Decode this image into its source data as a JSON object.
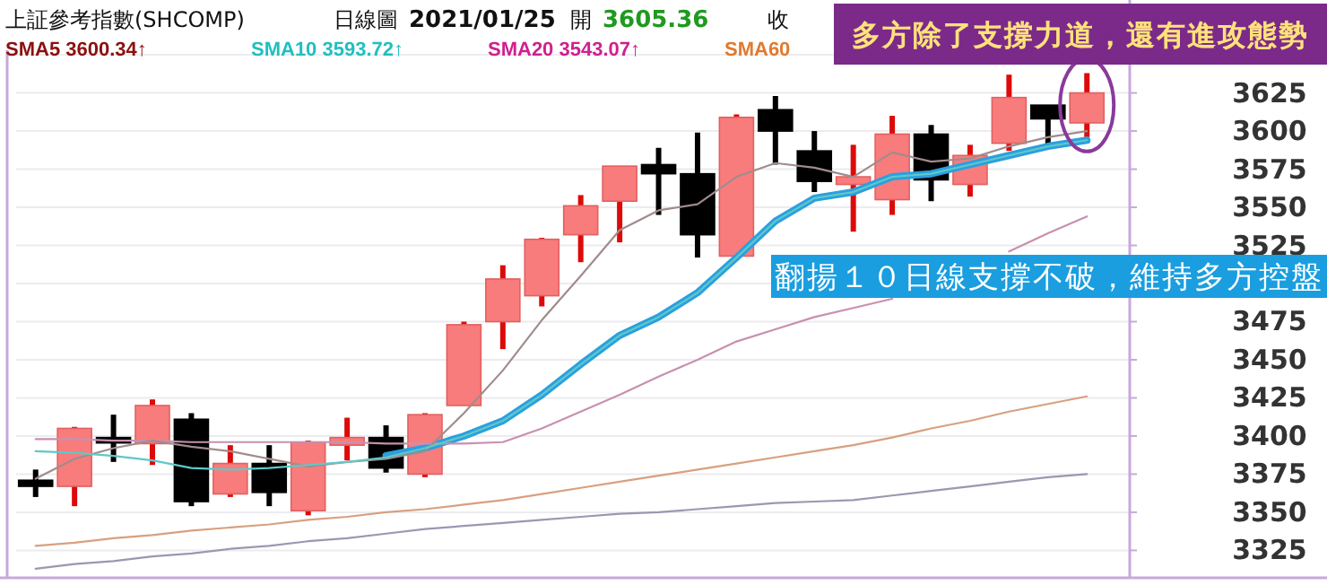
{
  "chart_data": {
    "type": "candlestick",
    "categories": [
      null,
      null,
      null,
      null,
      null,
      null,
      null,
      null,
      null,
      null,
      null,
      null,
      null,
      null,
      null,
      null,
      null,
      null,
      null,
      null,
      null,
      null,
      null,
      null,
      null,
      null,
      null,
      null
    ],
    "ohlc": [
      [
        3371,
        3378,
        3360,
        3367
      ],
      [
        3367,
        3406,
        3354,
        3405
      ],
      [
        3399,
        3414,
        3383,
        3397
      ],
      [
        3395,
        3424,
        3381,
        3420
      ],
      [
        3411,
        3415,
        3354,
        3357
      ],
      [
        3362,
        3394,
        3360,
        3382
      ],
      [
        3382,
        3394,
        3354,
        3363
      ],
      [
        3351,
        3397,
        3348,
        3396
      ],
      [
        3394,
        3412,
        3384,
        3399
      ],
      [
        3399,
        3407,
        3376,
        3379
      ],
      [
        3375,
        3415,
        3373,
        3414
      ],
      [
        3420,
        3475,
        3420,
        3473
      ],
      [
        3475,
        3512,
        3457,
        3503
      ],
      [
        3492,
        3530,
        3485,
        3529
      ],
      [
        3532,
        3558,
        3514,
        3551
      ],
      [
        3554,
        3577,
        3527,
        3577
      ],
      [
        3578,
        3589,
        3545,
        3572
      ],
      [
        3572,
        3599,
        3517,
        3532
      ],
      [
        3518,
        3611,
        3516,
        3609
      ],
      [
        3614,
        3623,
        3578,
        3600
      ],
      [
        3587,
        3600,
        3560,
        3567
      ],
      [
        3565,
        3591,
        3534,
        3570
      ],
      [
        3555,
        3610,
        3545,
        3598
      ],
      [
        3598,
        3604,
        3554,
        3568
      ],
      [
        3565,
        3591,
        3557,
        3584
      ],
      [
        3592,
        3637,
        3587,
        3622
      ],
      [
        3617,
        3617,
        3590,
        3608
      ],
      [
        3605.36,
        3638,
        3596,
        3625
      ]
    ],
    "series": [
      {
        "type": "line",
        "color": "#2aa0e0",
        "values": [
          null,
          null,
          null,
          null,
          null,
          null,
          null,
          null,
          null,
          3387,
          3392,
          3400,
          3410,
          3427,
          3447,
          3466,
          3478,
          3494,
          3517,
          3541,
          3556,
          3560,
          3570,
          3572,
          3578,
          3584,
          3590,
          3594
        ]
      },
      {
        "type": "line",
        "color": "#9a98b0",
        "values": [
          3313,
          3316,
          3318,
          3321,
          3323,
          3326,
          3328,
          3331,
          3333,
          3336,
          3339,
          3341,
          3343,
          3345,
          3347,
          3349,
          3350,
          3352,
          3354,
          3356,
          3357,
          3358,
          3361,
          3364,
          3367,
          3370,
          3373,
          3375
        ]
      },
      {
        "type": "line",
        "color": "#d8a080",
        "values": [
          3328,
          3330,
          3333,
          3335,
          3338,
          3340,
          3342,
          3345,
          3347,
          3350,
          3352,
          3355,
          3358,
          3362,
          3366,
          3370,
          3374,
          3378,
          3382,
          3386,
          3390,
          3394,
          3399,
          3405,
          3410,
          3416,
          3421,
          3426
        ]
      },
      {
        "type": "line",
        "color": "#c890b0",
        "values": [
          3398,
          3398,
          3397,
          3397,
          3396,
          3396,
          3396,
          3396,
          3396,
          3395,
          3395,
          3395,
          3396,
          3405,
          3416,
          3427,
          3439,
          3450,
          3462,
          3470,
          3478,
          3484,
          3490,
          null,
          null,
          3521,
          3533,
          3544
        ]
      },
      {
        "type": "line",
        "color": "#a08c8c",
        "values": [
          3372,
          3385,
          3392,
          3397,
          3393,
          3390,
          3385,
          3380,
          3383,
          3385,
          3390,
          3415,
          3443,
          3476,
          3505,
          3535,
          3548,
          3552,
          3570,
          3579,
          3576,
          3570,
          3586,
          3580,
          3582,
          3590,
          3596,
          3600
        ]
      },
      {
        "type": "line",
        "color": "#60c8c8",
        "values": [
          3390,
          3389,
          3387,
          3384,
          3379,
          3378,
          3379,
          3381,
          3383,
          3386,
          3392,
          3400,
          3410,
          3427,
          3447,
          3466,
          3478,
          3494,
          3517,
          3541,
          3556,
          3560,
          3570,
          3572,
          3578,
          3584,
          3590,
          3594
        ]
      }
    ],
    "ylim": [
      3307,
      3653
    ],
    "yticks": [
      3325,
      3350,
      3375,
      3400,
      3425,
      3450,
      3475,
      {
        "value": 3500,
        "label": null
      },
      3525,
      3550,
      3575,
      3600,
      3625,
      {
        "value": 3650,
        "label": null
      }
    ],
    "grid": "y",
    "annotations": [
      "上証參考指數(SHCOMP)",
      "日線圖",
      "2021/01/25",
      "開",
      "3605.36",
      "收",
      "SMA5 3600.34↑",
      "SMA10 3593.72↑",
      "SMA20 3543.07↑",
      "SMA60",
      "多方除了支撐力道，還有進攻態勢",
      "翻揚１０日線支撐不破，維持多方控盤"
    ]
  }
}
